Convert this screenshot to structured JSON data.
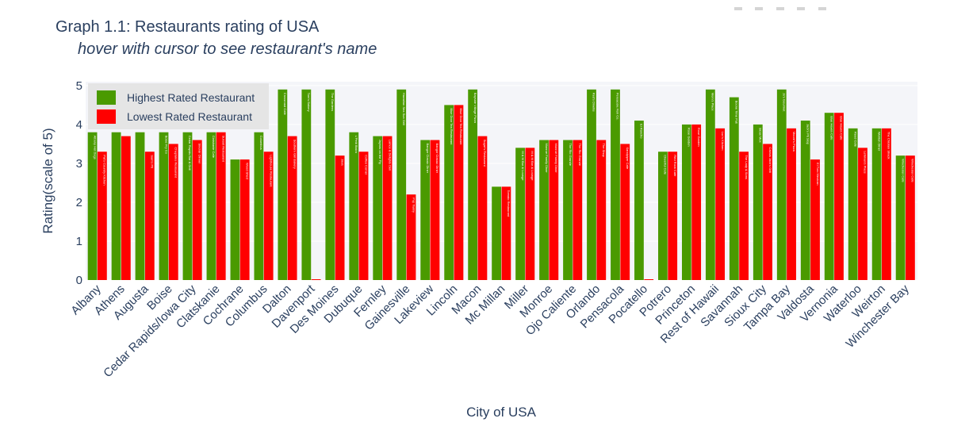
{
  "chart_data": {
    "type": "bar",
    "title": "Graph 1.1: Restaurants rating of USA",
    "subtitle": "hover with cursor to see restaurant's name",
    "xlabel": "City of USA",
    "ylabel": "Rating(scale of 5)",
    "ylim": [
      0,
      5.1
    ],
    "yticks": [
      0,
      1,
      2,
      3,
      4,
      5
    ],
    "grid": true,
    "legend_position": "top-left",
    "categories": [
      "Albany",
      "Athens",
      "Augusta",
      "Boise",
      "Cedar Rapids/Iowa City",
      "Clatskanie",
      "Cochrane",
      "Columbus",
      "Dalton",
      "Davenport",
      "Des Moines",
      "Dubuque",
      "Fernley",
      "Gainesville",
      "Lakeview",
      "Lincoln",
      "Macon",
      "Mc Millan",
      "Miller",
      "Monroe",
      "Ojo Caliente",
      "Orlando",
      "Pensacola",
      "Pocatello",
      "Potrero",
      "Princeton",
      "Rest of Hawaii",
      "Savannah",
      "Sioux City",
      "Tampa Bay",
      "Valdosta",
      "Vernonia",
      "Waterloo",
      "Weirton",
      "Winchester Bay"
    ],
    "series": [
      {
        "name": "Highest Rated Restaurant",
        "color": "#4a9a00",
        "values": [
          3.8,
          3.8,
          3.8,
          3.8,
          3.8,
          3.8,
          3.1,
          3.8,
          4.9,
          4.9,
          4.9,
          3.8,
          3.7,
          4.9,
          3.6,
          4.5,
          4.9,
          2.4,
          3.4,
          3.6,
          3.6,
          4.9,
          4.9,
          4.1,
          3.3,
          4.0,
          4.9,
          4.7,
          4.0,
          4.9,
          4.1,
          4.3,
          3.9,
          3.9,
          3.2
        ]
      },
      {
        "name": "Lowest Rated Restaurant",
        "color": "#ff0000",
        "values": [
          3.3,
          3.7,
          3.3,
          3.5,
          3.6,
          3.8,
          3.1,
          3.3,
          3.7,
          0.0,
          3.2,
          3.3,
          3.7,
          2.2,
          3.6,
          4.5,
          3.7,
          2.4,
          3.4,
          3.6,
          3.6,
          3.6,
          3.5,
          0.0,
          3.3,
          4.0,
          3.9,
          3.3,
          3.5,
          3.9,
          3.1,
          4.3,
          3.4,
          3.9,
          3.2
        ]
      }
    ],
    "bar_labels": {
      "highest": [
        "Albany Hot Dogs",
        "",
        "",
        "Boise Fry Co",
        "Cedar Rapids Bar & Grill",
        "Clatskanie Cafe",
        "",
        "Columbus",
        "Crossroad Cafe",
        "Tom's Bakery",
        "The Gardens",
        "L'Petit Bistro",
        "Jaynas on the Fly",
        "Hawaiian Sea Sun Grill",
        "Bangor Classic Diner",
        "Blue Door Tea Restaurant",
        "Bayside Village Pizza",
        "",
        "M & M Bar & Lounge",
        "Monroe Family Diner",
        "The Rio Grande",
        "Red's Dinette",
        "Pensacola Fish Co.",
        "El Rancho",
        "Cheerful Cafe",
        "Rose Garden",
        "Mom's Place",
        "Boone Time Pub",
        "Sioux Mex",
        "Jo's Gourmet",
        "Jack's Pit Stop",
        "Blue Haven Cafe",
        "Reed Cafe",
        "Weirton Diner",
        "Winchester Cafe"
      ],
      "lowest": [
        "Pat's Country Kitchen",
        "",
        "Sam's Pit",
        "Chaplains Restaurant",
        "Sinclair Dinner",
        "Sunset Restaurant",
        "Wood Shed",
        "Lighthouse Restaurant",
        "Southern Girl Bakery",
        "",
        "Java",
        "Coffee Corner",
        "Lamos & Delights Deli",
        "Pop Tastry",
        "Bangor Classic Diner",
        "Blue Door Tea Restaurant",
        "Sugar's Restaurant",
        "Tomato Restaurant",
        "M & M Bar & Lounge",
        "Monroe Family Diner",
        "The Rio Grande",
        "The Shop",
        "Sandpiper Cafe",
        "",
        "Red Rock Cafe",
        "Rose Garden",
        "Luc's Kitchen",
        "The Lady & Sons",
        "Cactus Jack's Grill",
        "Moore's Pizza",
        "El Toro Mexican",
        "Blue Haven Cafe",
        "Lehman's Place",
        "The Chicken Shack",
        "Winchester Cafe"
      ]
    }
  }
}
